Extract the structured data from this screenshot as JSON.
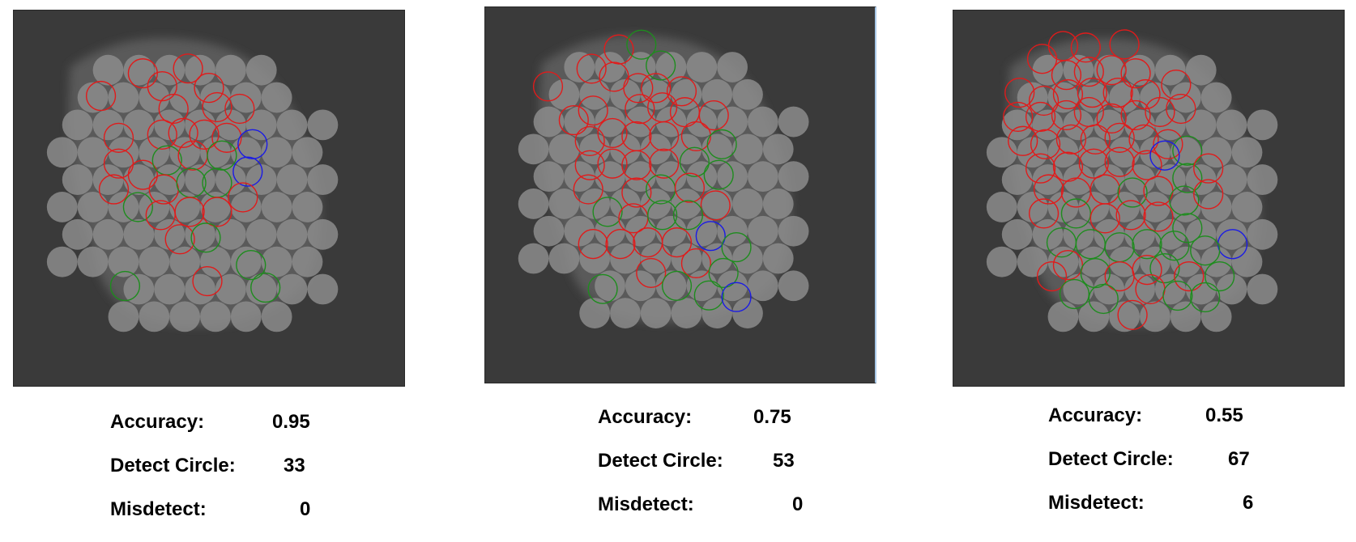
{
  "colors": {
    "background": "#3a3a3a",
    "blob": "#8c8c8c",
    "detected_correct": "#e01b1b",
    "missed": "#1e8c1e",
    "misdetect": "#1a1ae6"
  },
  "panels": [
    {
      "accuracy_label": "Accuracy:",
      "accuracy_value": "0.95",
      "detect_label": "Detect Circle:",
      "detect_value": "33",
      "misdetect_label": "Misdetect:",
      "misdetect_value": "0"
    },
    {
      "accuracy_label": "Accuracy:",
      "accuracy_value": "0.75",
      "detect_label": "Detect Circle:",
      "detect_value": "53",
      "misdetect_label": "Misdetect:",
      "misdetect_value": "0"
    },
    {
      "accuracy_label": "Accuracy:",
      "accuracy_value": "0.55",
      "detect_label": "Detect Circle:",
      "detect_value": "67",
      "misdetect_label": "Misdetect:",
      "misdetect_value": "6"
    }
  ]
}
